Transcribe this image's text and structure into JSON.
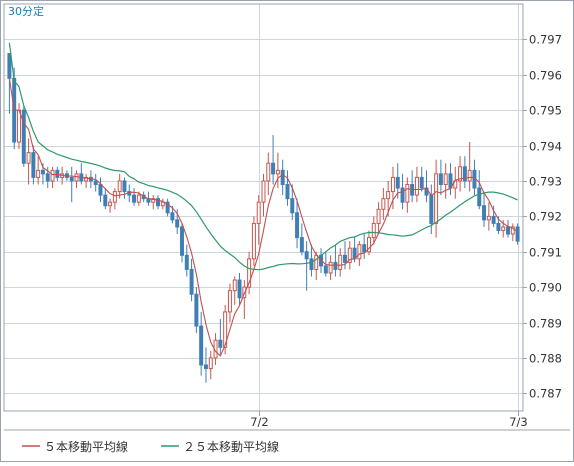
{
  "timeframe_label": "30分定",
  "legend": [
    {
      "label": "５本移動平均線",
      "color": "#c0504d"
    },
    {
      "label": "２５本移動平均線",
      "color": "#2e9a6b"
    }
  ],
  "colors": {
    "up": "#c8574d",
    "down": "#3f7fb5",
    "grid": "#cfd6df",
    "frame": "#9aa3ad",
    "label": "#1a7fbf"
  },
  "chart_data": {
    "type": "candlestick",
    "ylim": [
      0.7865,
      0.798
    ],
    "yticks": [
      "0.797",
      "0.796",
      "0.795",
      "0.794",
      "0.793",
      "0.792",
      "0.791",
      "0.790",
      "0.789",
      "0.788",
      "0.787"
    ],
    "xticks": [
      {
        "index": 52,
        "label": "7/2"
      },
      {
        "index": 106,
        "label": "7/3"
      }
    ],
    "candles": [
      [
        0.7966,
        0.7966,
        0.7949,
        0.7959
      ],
      [
        0.7959,
        0.7962,
        0.7939,
        0.7941
      ],
      [
        0.7941,
        0.7952,
        0.7939,
        0.795
      ],
      [
        0.795,
        0.7951,
        0.7934,
        0.7935
      ],
      [
        0.7935,
        0.7942,
        0.7929,
        0.7938
      ],
      [
        0.7938,
        0.794,
        0.7929,
        0.7931
      ],
      [
        0.7931,
        0.7937,
        0.7929,
        0.7933
      ],
      [
        0.7933,
        0.7935,
        0.7929,
        0.7932
      ],
      [
        0.7932,
        0.7934,
        0.7928,
        0.793
      ],
      [
        0.793,
        0.7934,
        0.7928,
        0.7933
      ],
      [
        0.7933,
        0.7934,
        0.793,
        0.7931
      ],
      [
        0.7931,
        0.7934,
        0.7929,
        0.7932
      ],
      [
        0.7932,
        0.7933,
        0.793,
        0.7931
      ],
      [
        0.7931,
        0.7934,
        0.7924,
        0.793
      ],
      [
        0.793,
        0.7933,
        0.7928,
        0.7932
      ],
      [
        0.7932,
        0.7935,
        0.7929,
        0.793
      ],
      [
        0.793,
        0.7932,
        0.7928,
        0.7931
      ],
      [
        0.7931,
        0.7933,
        0.7928,
        0.793
      ],
      [
        0.793,
        0.7932,
        0.7927,
        0.7929
      ],
      [
        0.7929,
        0.7931,
        0.7924,
        0.7926
      ],
      [
        0.7926,
        0.7928,
        0.7922,
        0.7923
      ],
      [
        0.7923,
        0.7925,
        0.7921,
        0.7924
      ],
      [
        0.7924,
        0.7928,
        0.7922,
        0.7927
      ],
      [
        0.7927,
        0.7932,
        0.7925,
        0.793
      ],
      [
        0.793,
        0.7931,
        0.7925,
        0.7927
      ],
      [
        0.7927,
        0.7929,
        0.7924,
        0.7926
      ],
      [
        0.7926,
        0.7928,
        0.7923,
        0.7924
      ],
      [
        0.7924,
        0.7927,
        0.7923,
        0.7926
      ],
      [
        0.7926,
        0.7927,
        0.7924,
        0.7925
      ],
      [
        0.7925,
        0.7927,
        0.7923,
        0.7924
      ],
      [
        0.7924,
        0.7926,
        0.7922,
        0.7925
      ],
      [
        0.7925,
        0.7926,
        0.7922,
        0.7923
      ],
      [
        0.7923,
        0.7925,
        0.7922,
        0.7924
      ],
      [
        0.7924,
        0.7925,
        0.792,
        0.7921
      ],
      [
        0.7921,
        0.7923,
        0.7918,
        0.7919
      ],
      [
        0.7919,
        0.7922,
        0.7915,
        0.7917
      ],
      [
        0.7917,
        0.7918,
        0.7907,
        0.7909
      ],
      [
        0.7909,
        0.7912,
        0.7903,
        0.7905
      ],
      [
        0.7905,
        0.7908,
        0.7896,
        0.7898
      ],
      [
        0.7898,
        0.79,
        0.7887,
        0.7889
      ],
      [
        0.7889,
        0.7893,
        0.7875,
        0.7878
      ],
      [
        0.7878,
        0.7883,
        0.7873,
        0.7877
      ],
      [
        0.7877,
        0.7882,
        0.7874,
        0.788
      ],
      [
        0.788,
        0.7887,
        0.7878,
        0.7885
      ],
      [
        0.7885,
        0.7891,
        0.7881,
        0.7883
      ],
      [
        0.7883,
        0.7895,
        0.7881,
        0.7893
      ],
      [
        0.7893,
        0.7901,
        0.789,
        0.7899
      ],
      [
        0.7899,
        0.7903,
        0.7895,
        0.7902
      ],
      [
        0.7902,
        0.7904,
        0.7895,
        0.7897
      ],
      [
        0.7897,
        0.7902,
        0.7891,
        0.79
      ],
      [
        0.79,
        0.791,
        0.7898,
        0.7908
      ],
      [
        0.7908,
        0.792,
        0.7906,
        0.7918
      ],
      [
        0.7918,
        0.7926,
        0.7912,
        0.7924
      ],
      [
        0.7924,
        0.7932,
        0.792,
        0.793
      ],
      [
        0.793,
        0.7938,
        0.7926,
        0.7935
      ],
      [
        0.7935,
        0.7943,
        0.7929,
        0.7932
      ],
      [
        0.7932,
        0.7938,
        0.7928,
        0.7933
      ],
      [
        0.7933,
        0.7936,
        0.7926,
        0.7929
      ],
      [
        0.7929,
        0.7933,
        0.7923,
        0.7925
      ],
      [
        0.7925,
        0.7929,
        0.7919,
        0.7921
      ],
      [
        0.7921,
        0.7925,
        0.7911,
        0.7914
      ],
      [
        0.7914,
        0.7918,
        0.7909,
        0.791
      ],
      [
        0.791,
        0.7913,
        0.7899,
        0.7908
      ],
      [
        0.7908,
        0.7912,
        0.7903,
        0.7905
      ],
      [
        0.7905,
        0.791,
        0.7902,
        0.7909
      ],
      [
        0.7909,
        0.7911,
        0.7904,
        0.7906
      ],
      [
        0.7906,
        0.791,
        0.7903,
        0.7904
      ],
      [
        0.7904,
        0.7909,
        0.7902,
        0.7907
      ],
      [
        0.7907,
        0.7912,
        0.7903,
        0.7905
      ],
      [
        0.7905,
        0.7911,
        0.7903,
        0.7909
      ],
      [
        0.7909,
        0.7913,
        0.7905,
        0.7907
      ],
      [
        0.7907,
        0.7913,
        0.7905,
        0.7911
      ],
      [
        0.7911,
        0.7914,
        0.7907,
        0.7908
      ],
      [
        0.7908,
        0.7913,
        0.7906,
        0.7912
      ],
      [
        0.7912,
        0.7915,
        0.7908,
        0.791
      ],
      [
        0.791,
        0.7916,
        0.7909,
        0.7914
      ],
      [
        0.7914,
        0.792,
        0.7912,
        0.7918
      ],
      [
        0.7918,
        0.7924,
        0.7915,
        0.7922
      ],
      [
        0.7922,
        0.7928,
        0.7919,
        0.7925
      ],
      [
        0.7925,
        0.793,
        0.792,
        0.7927
      ],
      [
        0.7927,
        0.7934,
        0.7922,
        0.7931
      ],
      [
        0.7931,
        0.7935,
        0.7925,
        0.7928
      ],
      [
        0.7928,
        0.7932,
        0.7922,
        0.7924
      ],
      [
        0.7924,
        0.7931,
        0.7921,
        0.7929
      ],
      [
        0.7929,
        0.7933,
        0.7924,
        0.7926
      ],
      [
        0.7926,
        0.7934,
        0.7924,
        0.7931
      ],
      [
        0.7931,
        0.7934,
        0.7927,
        0.7928
      ],
      [
        0.7928,
        0.7933,
        0.7924,
        0.7926
      ],
      [
        0.7926,
        0.7929,
        0.7915,
        0.7918
      ],
      [
        0.7918,
        0.7936,
        0.7914,
        0.7932
      ],
      [
        0.7932,
        0.7936,
        0.7926,
        0.7929
      ],
      [
        0.7929,
        0.7935,
        0.7925,
        0.7932
      ],
      [
        0.7932,
        0.7935,
        0.7926,
        0.7928
      ],
      [
        0.7928,
        0.7934,
        0.7925,
        0.793
      ],
      [
        0.793,
        0.7937,
        0.7927,
        0.7934
      ],
      [
        0.7934,
        0.7937,
        0.7928,
        0.793
      ],
      [
        0.793,
        0.7941,
        0.7927,
        0.7933
      ],
      [
        0.7933,
        0.7936,
        0.7926,
        0.7928
      ],
      [
        0.7928,
        0.7933,
        0.7922,
        0.7923
      ],
      [
        0.7923,
        0.7927,
        0.7917,
        0.7919
      ],
      [
        0.7919,
        0.7924,
        0.7916,
        0.792
      ],
      [
        0.792,
        0.7923,
        0.7917,
        0.7918
      ],
      [
        0.7918,
        0.792,
        0.7915,
        0.7916
      ],
      [
        0.7916,
        0.7919,
        0.7914,
        0.7917
      ],
      [
        0.7917,
        0.7919,
        0.7914,
        0.7915
      ],
      [
        0.7915,
        0.7918,
        0.7913,
        0.7917
      ],
      [
        0.7917,
        0.7918,
        0.7912,
        0.7913
      ]
    ],
    "ma5_color": "#c0504d",
    "ma25_color": "#2e9a6b"
  }
}
